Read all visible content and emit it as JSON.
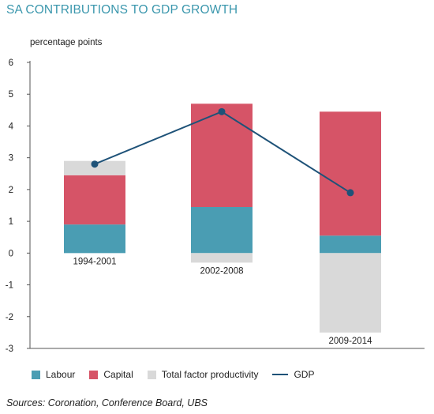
{
  "title": "SA CONTRIBUTIONS TO GDP GROWTH",
  "source": "Sources: Coronation, Conference Board, UBS",
  "colors": {
    "title": "#3b97ad",
    "Labour": "#4a9db3",
    "Capital": "#d65467",
    "Total factor productivity": "#d9d9d9",
    "GDP": "#1e5278"
  },
  "chart_data": {
    "type": "bar",
    "stacked": true,
    "title": "SA CONTRIBUTIONS TO GDP GROWTH",
    "ylabel": "percentage points",
    "xlabel": "",
    "ylim": [
      -3,
      6
    ],
    "yticks": [
      6,
      5,
      4,
      3,
      2,
      1,
      0,
      -1,
      -2,
      -3
    ],
    "grid": false,
    "legend_position": "bottom",
    "categories": [
      "1994-2001",
      "2002-2008",
      "2009-2014"
    ],
    "series": [
      {
        "name": "Labour",
        "type": "bar",
        "values": [
          0.9,
          1.45,
          0.55
        ]
      },
      {
        "name": "Capital",
        "type": "bar",
        "values": [
          1.55,
          3.25,
          3.9
        ]
      },
      {
        "name": "Total factor productivity",
        "type": "bar",
        "values": [
          0.45,
          -0.3,
          -2.5
        ]
      },
      {
        "name": "GDP",
        "type": "line",
        "values": [
          2.8,
          4.45,
          1.9
        ]
      }
    ]
  }
}
